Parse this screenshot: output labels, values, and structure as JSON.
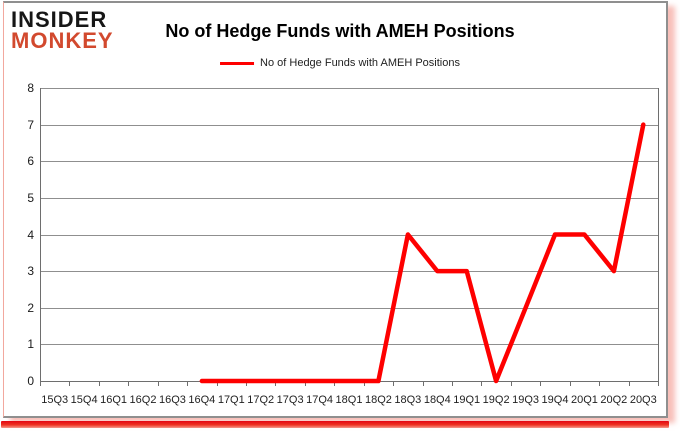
{
  "logo": {
    "line1": "INSIDER",
    "line2": "MONKEY"
  },
  "header": {
    "title": "No of Hedge Funds with AMEH Positions"
  },
  "legend": {
    "label": "No of Hedge Funds with AMEH Positions"
  },
  "colors": {
    "line": "#FE0000",
    "logo_black": "#161616",
    "logo_red": "#D2492E",
    "grid_gray": "#8F8F8F",
    "bottom_bar_red": "#E40613"
  },
  "chart_data": {
    "type": "line",
    "title": "No of Hedge Funds with AMEH Positions",
    "categories": [
      "15Q3",
      "15Q4",
      "16Q1",
      "16Q2",
      "16Q3",
      "16Q4",
      "17Q1",
      "17Q2",
      "17Q3",
      "17Q4",
      "18Q1",
      "18Q2",
      "18Q3",
      "18Q4",
      "19Q1",
      "19Q2",
      "19Q3",
      "19Q4",
      "20Q1",
      "20Q2",
      "20Q3"
    ],
    "series": [
      {
        "name": "No of Hedge Funds with AMEH Positions",
        "color": "#FE0000",
        "values": [
          null,
          null,
          null,
          null,
          null,
          0,
          0,
          0,
          0,
          0,
          0,
          0,
          4,
          3,
          3,
          0,
          2,
          4,
          4,
          3,
          7
        ]
      }
    ],
    "ylim": [
      0,
      8
    ],
    "yticks": [
      0,
      1,
      2,
      3,
      4,
      5,
      6,
      7,
      8
    ],
    "ytick_step": 1,
    "grid": true,
    "legend_position": "top"
  }
}
